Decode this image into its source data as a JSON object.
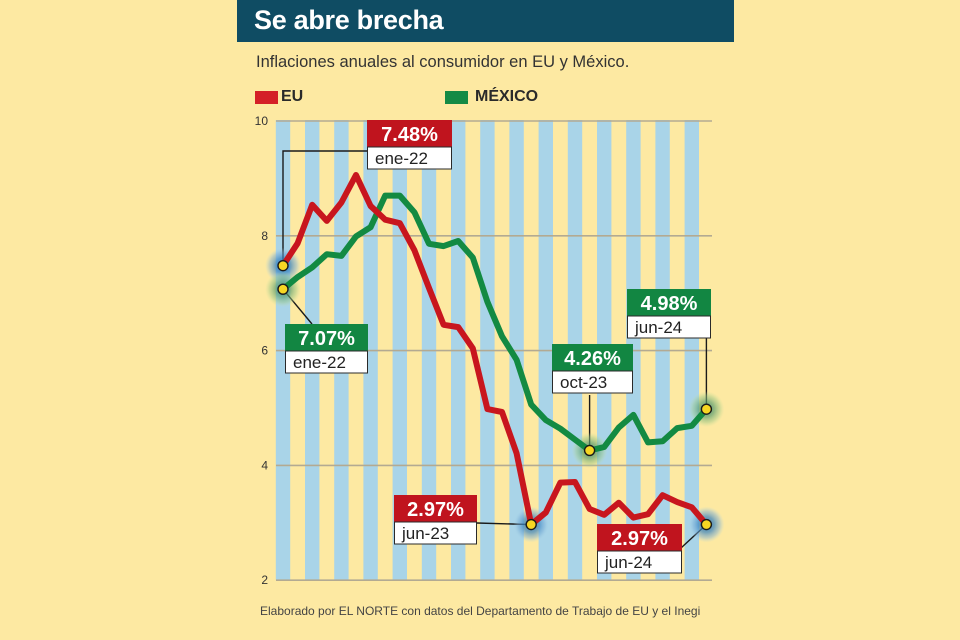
{
  "header": {
    "title": "Se abre brecha",
    "subtitle": "Inflaciones anuales al consumidor en EU y México."
  },
  "legend": [
    {
      "label": "EU",
      "color": "#d42027"
    },
    {
      "label": "MÉXICO",
      "color": "#148a45"
    }
  ],
  "source": "Elaborado por EL NORTE con datos del Departamento de Trabajo de EU y el Inegi",
  "colors": {
    "background": "#fde9a2",
    "title_bar": "#0f4c63",
    "stripe": "#a9d4e8",
    "grid": "#b3aa92",
    "eu_line": "#c8161e",
    "mx_line": "#138a42",
    "eu_box": "#c0141e",
    "mx_box": "#128642",
    "marker": "#f6d623"
  },
  "chart_data": {
    "type": "line",
    "title": "Se abre brecha",
    "subtitle": "Inflaciones anuales al consumidor en EU y México.",
    "xlabel": "",
    "ylabel": "",
    "ylim": [
      2,
      10
    ],
    "yticks": [
      "2",
      "4",
      "6",
      "8",
      "10"
    ],
    "x_range": [
      "ene-22",
      "jun-24"
    ],
    "x": [
      0,
      1,
      2,
      3,
      4,
      5,
      6,
      7,
      8,
      9,
      10,
      11,
      12,
      13,
      14,
      15,
      16,
      17,
      18,
      19,
      20,
      21,
      22,
      23,
      24,
      25,
      26,
      27,
      28,
      29
    ],
    "grid": true,
    "legend_position": "top-left",
    "series": [
      {
        "name": "EU",
        "color": "#c8161e",
        "values": [
          7.48,
          7.87,
          8.54,
          8.26,
          8.58,
          9.06,
          8.52,
          8.28,
          8.22,
          7.75,
          7.09,
          6.45,
          6.41,
          6.04,
          4.98,
          4.93,
          4.21,
          2.97,
          3.18,
          3.7,
          3.71,
          3.24,
          3.14,
          3.35,
          3.09,
          3.15,
          3.48,
          3.36,
          3.27,
          2.97
        ]
      },
      {
        "name": "MÉXICO",
        "color": "#138a42",
        "values": [
          7.07,
          7.28,
          7.45,
          7.68,
          7.65,
          7.99,
          8.15,
          8.7,
          8.7,
          8.41,
          7.86,
          7.82,
          7.91,
          7.62,
          6.85,
          6.25,
          5.84,
          5.06,
          4.79,
          4.64,
          4.45,
          4.26,
          4.32,
          4.66,
          4.88,
          4.4,
          4.42,
          4.65,
          4.69,
          4.98
        ]
      }
    ],
    "annotations": [
      {
        "series": "EU",
        "index": 0,
        "value": "7.48%",
        "date": "ene-22"
      },
      {
        "series": "MÉXICO",
        "index": 0,
        "value": "7.07%",
        "date": "ene-22"
      },
      {
        "series": "MÉXICO",
        "index": 21,
        "value": "4.26%",
        "date": "oct-23"
      },
      {
        "series": "MÉXICO",
        "index": 29,
        "value": "4.98%",
        "date": "jun-24"
      },
      {
        "series": "EU",
        "index": 17,
        "value": "2.97%",
        "date": "jun-23"
      },
      {
        "series": "EU",
        "index": 29,
        "value": "2.97%",
        "date": "jun-24"
      }
    ]
  }
}
